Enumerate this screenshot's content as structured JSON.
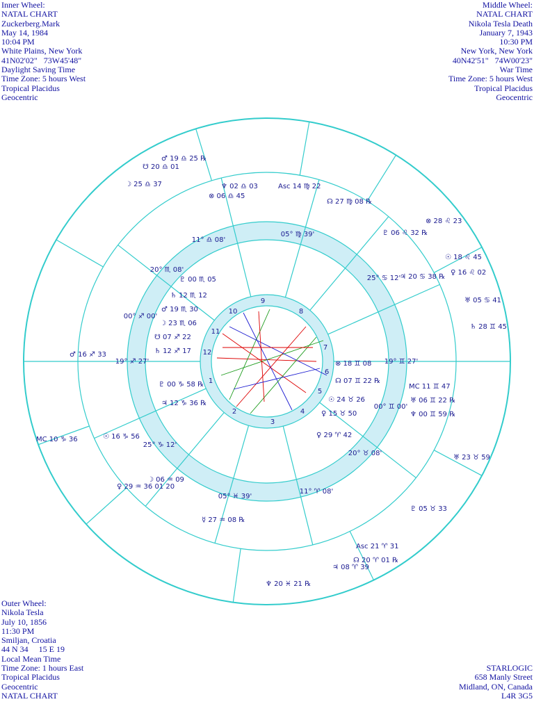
{
  "inner_wheel": [
    "Inner Wheel:",
    "NATAL CHART",
    "Zuckerberg.Mark",
    "May 14, 1984",
    "10:04 PM",
    "White Plains, New York",
    "41N02'02\"   73W45'48\"",
    "Daylight Saving Time",
    "Time Zone: 5 hours West",
    "Tropical Placidus",
    "Geocentric"
  ],
  "middle_wheel": [
    "Middle Wheel:",
    "NATAL CHART",
    "Nikola Tesla Death",
    "January 7, 1943",
    "10:30 PM",
    "New York, New York",
    "40N42'51\"   74W00'23\"",
    "War Time",
    "Time Zone: 5 hours West",
    "Tropical Placidus",
    "Geocentric"
  ],
  "outer_wheel": [
    "Outer Wheel:",
    "Nikola Tesla",
    "July 10, 1856",
    "11:30 PM",
    "Smiljan, Croatia",
    "44 N 34     15 E 19",
    "Local Mean Time",
    "Time Zone: 1 hours East",
    "Tropical Placidus",
    "Geocentric",
    "NATAL CHART"
  ],
  "credit": [
    "STARLOGIC",
    "658 Manly Street",
    "Midland, ON, Canada",
    "L4R 3G5"
  ],
  "cusps": [
    "11° ♎ 08'",
    "05° ♍ 39'",
    "25° ♋ 12'",
    "19° ♊ 27'",
    "00° ♊ 00'",
    "20° ♉ 08'",
    "11° ♈ 08'",
    "05° ♓ 39'",
    "25° ♑ 12'",
    "19° ♐ 27'",
    "00° ♐ 00'",
    "20° ♏ 08'"
  ],
  "houses": [
    "1",
    "2",
    "3",
    "4",
    "5",
    "6",
    "7",
    "8",
    "9",
    "10",
    "11",
    "12"
  ],
  "planets": [
    "☽ 25 ♎ 37",
    "☋ 20 ♎ 01",
    "♂ 19 ♎ 25 ℞",
    "⊗ 06 ♎ 45",
    "♆ 02 ♎ 03",
    "Asc 14 ♍ 22",
    "☊ 27 ♍ 08 ℞",
    "♇ 06 ♌ 32 ℞",
    "⊗ 28 ♌ 23",
    "☉ 18 ♌ 45",
    "♀ 16 ♌ 02",
    "♃ 20 ♋ 38 ℞",
    "♅ 05 ♋ 41",
    "♄ 28 ♊ 45",
    "⊗ 18 ♊ 08",
    "☊ 07 ♊ 22 ℞",
    "MC 11 ♊ 47",
    "♅ 06 ♊ 22 ℞",
    "♆ 00 ♊ 59 ℞",
    "☉ 24 ♉ 26",
    "♀ 15 ♉ 50",
    "♀ 29 ♈ 42",
    "♅ 23 ♉ 59",
    "♇ 05 ♉ 33",
    "Asc 21 ♈ 31",
    "☊ 20 ♈ 01 ℞",
    "♃ 08 ♈ 39",
    "♆ 20 ♓ 21 ℞",
    "☿ 27 ♒ 08 ℞",
    "☽ 06 ♒ 09",
    "♀ 29 ♒ 36 01 20",
    "☉ 16 ♑ 56",
    "MC 10 ♑ 36",
    "♃ 12 ♑ 36 ℞",
    "♇ 00 ♑ 58 ℞",
    "♂ 16 ♐ 33",
    "♄ 12 ♐ 17",
    "☋ 07 ♐ 22",
    "☽ 23 ♏ 06",
    "♂ 19 ♏ 30",
    "♄ 12 ♏ 12",
    "♇ 00 ♏ 05"
  ]
}
